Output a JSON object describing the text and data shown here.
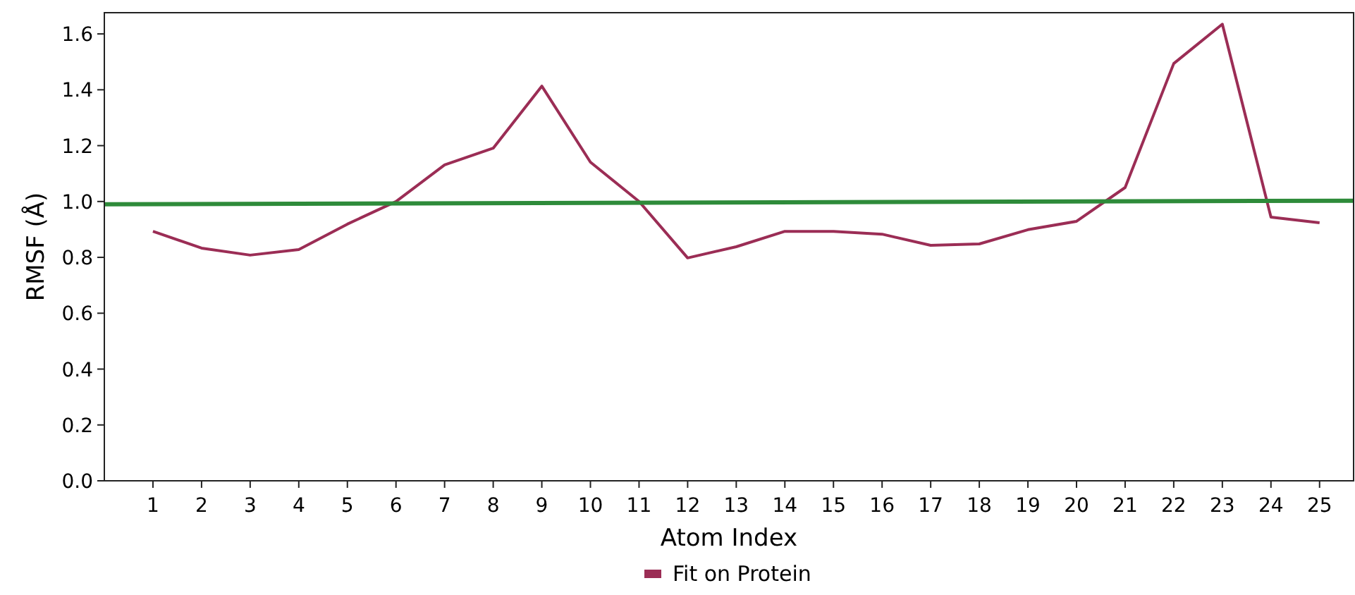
{
  "chart_data": {
    "type": "line",
    "xlabel": "Atom Index",
    "ylabel": "RMSF (Å)",
    "x": [
      1,
      2,
      3,
      4,
      5,
      6,
      7,
      8,
      9,
      10,
      11,
      12,
      13,
      14,
      15,
      16,
      17,
      18,
      19,
      20,
      21,
      22,
      23,
      24,
      25
    ],
    "series": [
      {
        "name": "Fit on Protein",
        "color": "#9b2d55",
        "values": [
          0.893,
          0.833,
          0.808,
          0.828,
          0.919,
          1.0,
          1.131,
          1.191,
          1.413,
          1.141,
          1.0,
          0.798,
          0.838,
          0.893,
          0.893,
          0.883,
          0.843,
          0.848,
          0.899,
          0.929,
          1.05,
          1.494,
          1.635,
          0.944,
          0.924
        ]
      },
      {
        "color": "#2e8b3a",
        "x": [
          0,
          25.7
        ],
        "values": [
          0.99,
          1.003
        ]
      }
    ],
    "xlim": [
      0,
      25.7
    ],
    "ylim": [
      0,
      1.676
    ],
    "xticks": [
      1,
      2,
      3,
      4,
      5,
      6,
      7,
      8,
      9,
      10,
      11,
      12,
      13,
      14,
      15,
      16,
      17,
      18,
      19,
      20,
      21,
      22,
      23,
      24,
      25
    ],
    "yticks": [
      {
        "value": 0,
        "label": "0.0"
      },
      {
        "value": 0.2,
        "label": "0.2"
      },
      {
        "value": 0.4,
        "label": "0.4"
      },
      {
        "value": 0.6,
        "label": "0.6"
      },
      {
        "value": 0.8,
        "label": "0.8"
      },
      {
        "value": 1,
        "label": "1.0"
      },
      {
        "value": 1.2,
        "label": "1.2"
      },
      {
        "value": 1.4,
        "label": "1.4"
      },
      {
        "value": 1.6,
        "label": "1.6"
      }
    ],
    "grid": false,
    "legend": "bottom"
  }
}
